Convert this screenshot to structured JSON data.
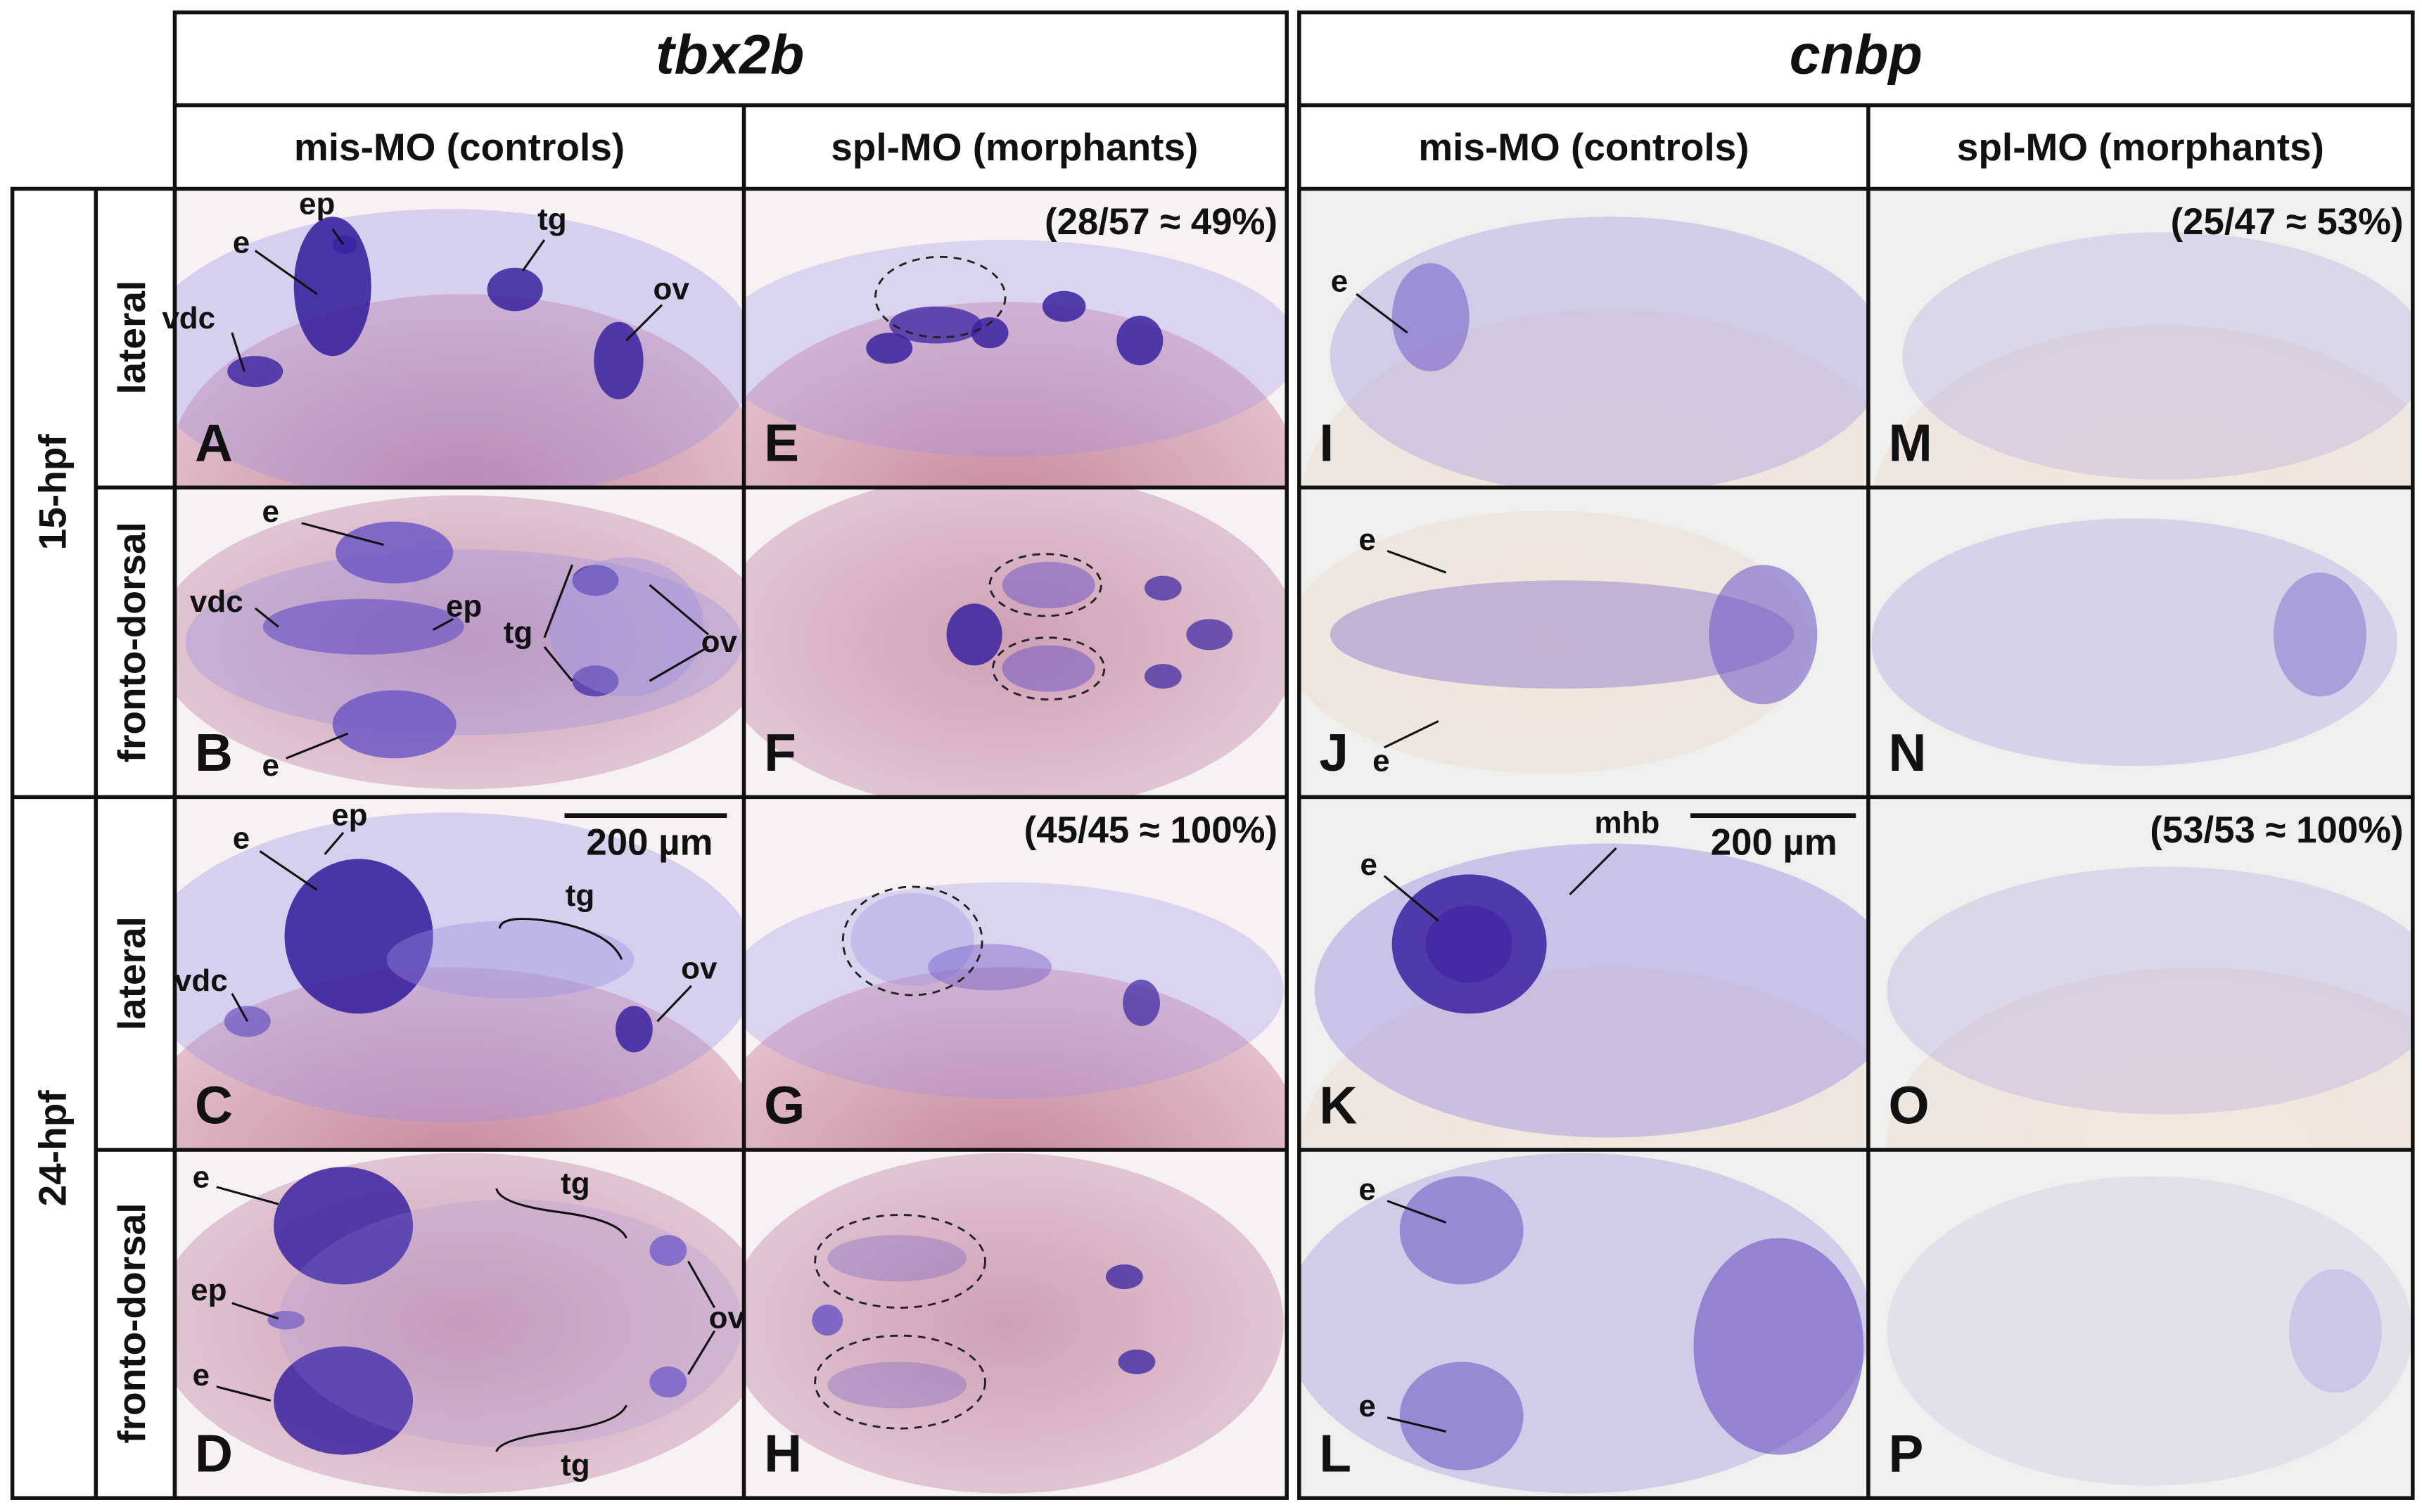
{
  "genes": [
    "tbx2b",
    "cnbp"
  ],
  "conditions": [
    "mis-MO (controls)",
    "spl-MO (morphants)",
    "mis-MO (controls)",
    "spl-MO (morphants)"
  ],
  "stages": [
    "15-hpf",
    "24-hpf"
  ],
  "views": [
    "lateral",
    "fronto-dorsal",
    "lateral",
    "fronto-dorsal"
  ],
  "panels": [
    {
      "letter": "A",
      "labels": [
        "ep",
        "e",
        "vdc",
        "tg",
        "ov"
      ]
    },
    {
      "letter": "B",
      "labels": [
        "e",
        "vdc",
        "ep",
        "tg",
        "ov",
        "e"
      ]
    },
    {
      "letter": "C",
      "labels": [
        "e",
        "ep",
        "vdc",
        "tg",
        "ov"
      ],
      "scale_bar": "200 µm"
    },
    {
      "letter": "D",
      "labels": [
        "e",
        "ep",
        "e",
        "tg",
        "ov",
        "tg"
      ]
    },
    {
      "letter": "E",
      "ratio": "(28/57 ≈ 49%)"
    },
    {
      "letter": "F"
    },
    {
      "letter": "G",
      "ratio": "(45/45 ≈ 100%)"
    },
    {
      "letter": "H"
    },
    {
      "letter": "I",
      "labels": [
        "e"
      ]
    },
    {
      "letter": "J",
      "labels": [
        "e",
        "e"
      ]
    },
    {
      "letter": "K",
      "labels": [
        "e",
        "mhb"
      ],
      "scale_bar": "200 µm"
    },
    {
      "letter": "L",
      "labels": [
        "e",
        "e"
      ]
    },
    {
      "letter": "M",
      "ratio": "(25/47 ≈ 53%)"
    },
    {
      "letter": "N"
    },
    {
      "letter": "O",
      "ratio": "(53/53 ≈ 100%)"
    },
    {
      "letter": "P"
    }
  ]
}
